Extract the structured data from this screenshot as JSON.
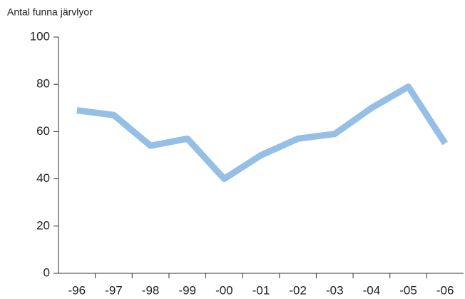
{
  "chart_data": {
    "type": "line",
    "y_label": "Antal funna järvlyor",
    "categories": [
      "-96",
      "-97",
      "-98",
      "-99",
      "-00",
      "-01",
      "-02",
      "-03",
      "-04",
      "-05",
      "-06"
    ],
    "series": [
      {
        "name": null,
        "color": "#95bfe4",
        "values": [
          69,
          67,
          54,
          57,
          40,
          50,
          57,
          59,
          70,
          79,
          55
        ]
      }
    ],
    "ylim": [
      0,
      100
    ],
    "yticks": [
      0,
      20,
      40,
      60,
      80,
      100
    ],
    "grid": false
  }
}
